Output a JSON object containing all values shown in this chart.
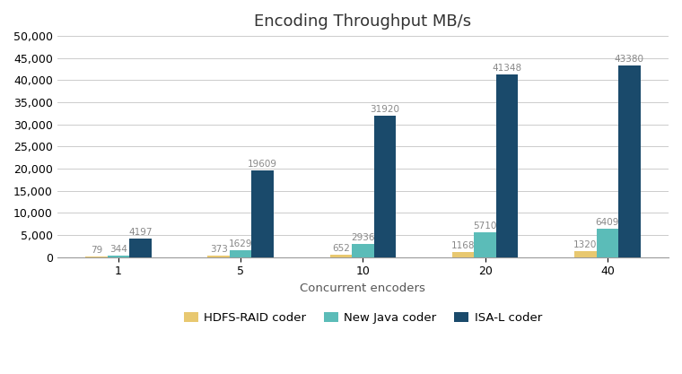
{
  "title": "Encoding Throughput MB/s",
  "xlabel": "Concurrent encoders",
  "categories": [
    1,
    5,
    10,
    20,
    40
  ],
  "series": [
    {
      "name": "HDFS-RAID coder",
      "values": [
        79,
        373,
        652,
        1168,
        1320
      ],
      "color": "#e8c870"
    },
    {
      "name": "New Java coder",
      "values": [
        344,
        1629,
        2936,
        5710,
        6409
      ],
      "color": "#5bbcb8"
    },
    {
      "name": "ISA-L coder",
      "values": [
        4197,
        19609,
        31920,
        41348,
        43380
      ],
      "color": "#1a4a6b"
    }
  ],
  "ylim": [
    0,
    50000
  ],
  "yticks": [
    0,
    5000,
    10000,
    15000,
    20000,
    25000,
    30000,
    35000,
    40000,
    45000,
    50000
  ],
  "background_color": "#ffffff",
  "grid_color": "#cccccc",
  "bar_width": 0.18,
  "title_fontsize": 13,
  "label_fontsize": 9.5,
  "tick_fontsize": 9,
  "annotation_fontsize": 7.5,
  "annotation_color": "#888888"
}
